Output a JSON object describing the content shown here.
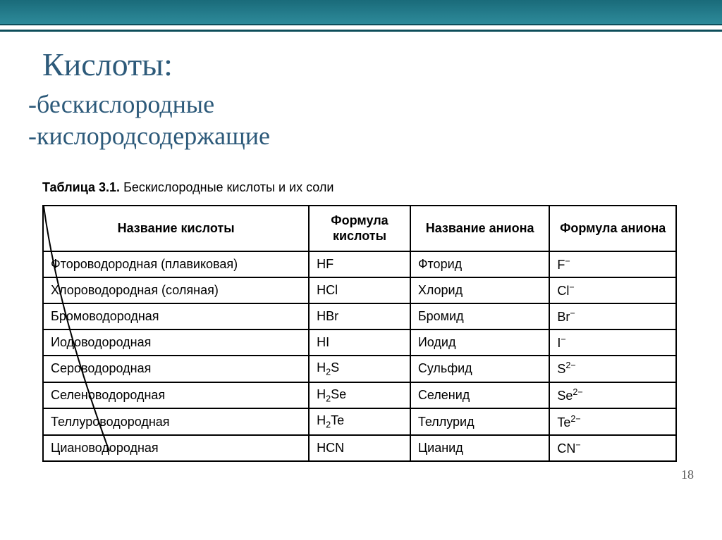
{
  "title": "Кислоты:",
  "subtitle1": "-бескислородные",
  "subtitle2": "-кислородсодержащие",
  "table_caption_bold": "Таблица 3.1.",
  "table_caption_rest": " Бескислородные кислоты и их соли",
  "headers": {
    "c1": "Название кислоты",
    "c2": "Формула кислоты",
    "c3": "Название аниона",
    "c4": "Формула аниона"
  },
  "rows": [
    {
      "name": "Фтороводородная (плавиковая)",
      "formula": "HF",
      "anion_name": "Фторид",
      "anion_formula": "F<sup>−</sup>"
    },
    {
      "name": "Хлороводородная (соляная)",
      "formula": "HCl",
      "anion_name": "Хлорид",
      "anion_formula": "Cl<sup>−</sup>"
    },
    {
      "name": "Бромоводородная",
      "formula": "HBr",
      "anion_name": "Бромид",
      "anion_formula": "Br<sup>−</sup>"
    },
    {
      "name": "Иодоводородная",
      "formula": "HI",
      "anion_name": "Иодид",
      "anion_formula": "I<sup>−</sup>"
    },
    {
      "name": "Сероводородная",
      "formula": "H<sub>2</sub>S",
      "anion_name": "Сульфид",
      "anion_formula": "S<sup>2−</sup>"
    },
    {
      "name": "Селеноводородная",
      "formula": "H<sub>2</sub>Se",
      "anion_name": "Селенид",
      "anion_formula": "Se<sup>2−</sup>"
    },
    {
      "name": "Теллуроводородная",
      "formula": "H<sub>2</sub>Te",
      "anion_name": "Теллурид",
      "anion_formula": "Te<sup>2−</sup>"
    },
    {
      "name": "Циановодородная",
      "formula": "HCN",
      "anion_name": "Цианид",
      "anion_formula": "CN<sup>−</sup>"
    }
  ],
  "col_widths": [
    "42%",
    "16%",
    "22%",
    "20%"
  ],
  "page_number": "18",
  "colors": {
    "title_color": "#2d5a7a",
    "bar_top": "#1a6b7a",
    "bar_bottom": "#2d8a9a",
    "border": "#000000"
  }
}
